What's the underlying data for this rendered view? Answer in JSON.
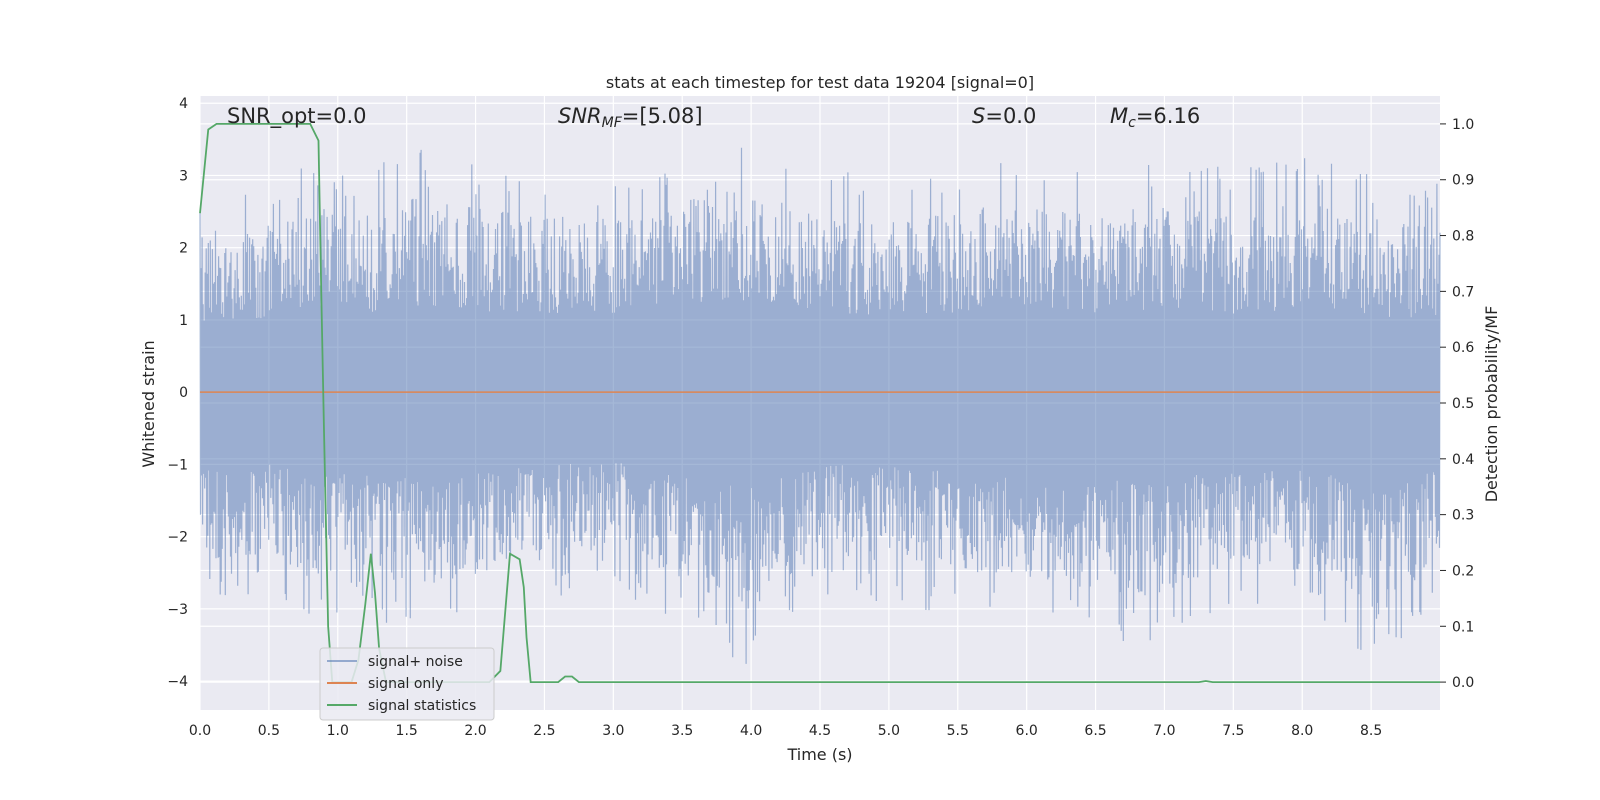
{
  "chart_data": {
    "type": "line",
    "title": "stats at each timestep for test data 19204 [signal=0]",
    "xlabel": "Time (s)",
    "ylabel": "Whitened strain",
    "y2label": "Detection probability/MF",
    "xlim": [
      0,
      9.0
    ],
    "ylim": [
      -4.4,
      4.1
    ],
    "y2lim": [
      -0.05,
      1.05
    ],
    "xticks": [
      0.0,
      0.5,
      1.0,
      1.5,
      2.0,
      2.5,
      3.0,
      3.5,
      4.0,
      4.5,
      5.0,
      5.5,
      6.0,
      6.5,
      7.0,
      7.5,
      8.0,
      8.5
    ],
    "xtick_labels": [
      "0.0",
      "0.5",
      "1.0",
      "1.5",
      "2.0",
      "2.5",
      "3.0",
      "3.5",
      "4.0",
      "4.5",
      "5.0",
      "5.5",
      "6.0",
      "6.5",
      "7.0",
      "7.5",
      "8.0",
      "8.5"
    ],
    "yticks": [
      4,
      3,
      2,
      1,
      0,
      -1,
      -2,
      -3,
      -4
    ],
    "ytick_labels": [
      "4",
      "3",
      "2",
      "1",
      "0",
      "−1",
      "−2",
      "−3",
      "−4"
    ],
    "y2ticks": [
      1.0,
      0.9,
      0.8,
      0.7,
      0.6,
      0.5,
      0.4,
      0.3,
      0.2,
      0.1,
      0.0
    ],
    "y2tick_labels": [
      "1.0",
      "0.9",
      "0.8",
      "0.7",
      "0.6",
      "0.5",
      "0.4",
      "0.3",
      "0.2",
      "0.1",
      "0.0"
    ],
    "grid": true,
    "legend_position": "lower-left",
    "annotations": {
      "snr_opt": "SNR_opt=0.0",
      "snr_mf_sym": "SNR",
      "snr_mf_sub": "MF",
      "snr_mf_val": "=[5.08]",
      "s_sym": "S",
      "s_val": "=0.0",
      "mc_sym": "M",
      "mc_sub": "c",
      "mc_val": "=6.16"
    },
    "series": [
      {
        "name": "signal+ noise",
        "color": "#4c72b0",
        "axis": "left",
        "description_of_values": "whitened strain noise, roughly within ±2.5 with spikes to ±3.8",
        "envelope_upper": [
          [
            0.0,
            2.8
          ],
          [
            0.5,
            2.9
          ],
          [
            0.8,
            3.2
          ],
          [
            1.2,
            3.1
          ],
          [
            1.5,
            3.4
          ],
          [
            2.3,
            3.1
          ],
          [
            2.9,
            3.0
          ],
          [
            3.4,
            3.2
          ],
          [
            3.75,
            3.7
          ],
          [
            4.5,
            3.1
          ],
          [
            5.0,
            3.0
          ],
          [
            6.0,
            3.3
          ],
          [
            6.3,
            3.1
          ],
          [
            7.0,
            3.2
          ],
          [
            7.5,
            3.1
          ],
          [
            8.1,
            3.3
          ],
          [
            8.5,
            3.0
          ],
          [
            9.0,
            2.9
          ]
        ],
        "envelope_lower": [
          [
            0.0,
            -2.9
          ],
          [
            0.5,
            -2.8
          ],
          [
            0.75,
            -3.2
          ],
          [
            1.2,
            -3.0
          ],
          [
            1.5,
            -3.4
          ],
          [
            2.5,
            -2.9
          ],
          [
            3.0,
            -2.7
          ],
          [
            3.97,
            -3.8
          ],
          [
            4.5,
            -2.8
          ],
          [
            5.5,
            -3.1
          ],
          [
            6.4,
            -3.4
          ],
          [
            7.0,
            -3.6
          ],
          [
            7.5,
            -2.9
          ],
          [
            8.25,
            -3.2
          ],
          [
            8.52,
            -4.0
          ],
          [
            9.0,
            -2.8
          ]
        ]
      },
      {
        "name": "signal only",
        "color": "#dd8452",
        "axis": "left",
        "x": [
          0.0,
          9.0
        ],
        "y": [
          0.0,
          0.0
        ]
      },
      {
        "name": "signal statistics",
        "color": "#55a868",
        "axis": "right",
        "x": [
          0.0,
          0.06,
          0.12,
          0.2,
          0.3,
          0.4,
          0.5,
          0.6,
          0.7,
          0.8,
          0.86,
          0.88,
          0.9,
          0.93,
          0.96,
          1.0,
          1.1,
          1.15,
          1.2,
          1.24,
          1.27,
          1.3,
          1.35,
          1.4,
          1.5,
          1.7,
          1.9,
          2.0,
          2.1,
          2.18,
          2.25,
          2.32,
          2.35,
          2.37,
          2.4,
          2.5,
          2.6,
          2.65,
          2.7,
          2.75,
          3.0,
          4.0,
          5.0,
          6.0,
          7.0,
          7.25,
          7.3,
          7.35,
          8.0,
          9.0
        ],
        "y": [
          0.84,
          0.99,
          1.0,
          1.0,
          1.0,
          1.0,
          1.0,
          1.0,
          1.0,
          1.0,
          0.97,
          0.7,
          0.45,
          0.1,
          0.0,
          0.0,
          0.0,
          0.04,
          0.14,
          0.23,
          0.16,
          0.06,
          0.0,
          0.0,
          0.0,
          0.0,
          0.0,
          0.0,
          0.0,
          0.02,
          0.23,
          0.22,
          0.17,
          0.08,
          0.0,
          0.0,
          0.0,
          0.01,
          0.01,
          0.0,
          0.0,
          0.0,
          0.0,
          0.0,
          0.0,
          0.0,
          0.002,
          0.0,
          0.0,
          0.0
        ]
      }
    ]
  }
}
